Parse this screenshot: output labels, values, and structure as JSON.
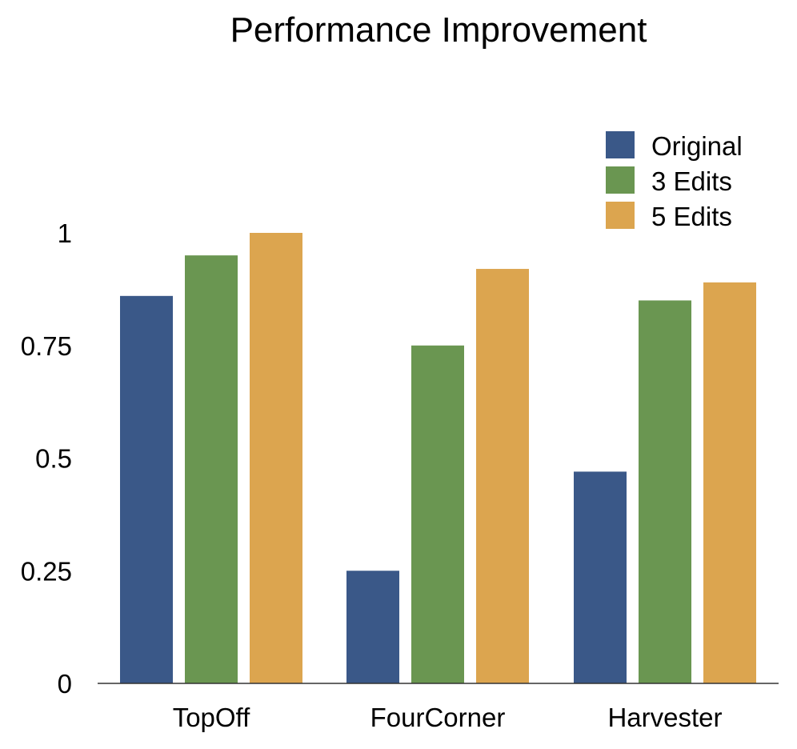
{
  "chart_data": {
    "type": "bar",
    "title": "Performance Improvement",
    "xlabel": "",
    "ylabel": "",
    "categories": [
      "TopOff",
      "FourCorner",
      "Harvester"
    ],
    "series": [
      {
        "name": "Original",
        "color": "#3a5888",
        "values": [
          0.86,
          0.25,
          0.47
        ]
      },
      {
        "name": "3 Edits",
        "color": "#6a9651",
        "values": [
          0.95,
          0.75,
          0.85
        ]
      },
      {
        "name": "5 Edits",
        "color": "#dca54f",
        "values": [
          1.0,
          0.92,
          0.89
        ]
      }
    ],
    "ylim": [
      0,
      1
    ],
    "yticks": [
      {
        "value": 0,
        "label": "0"
      },
      {
        "value": 0.25,
        "label": "0.25"
      },
      {
        "value": 0.5,
        "label": "0.5"
      },
      {
        "value": 0.75,
        "label": "0.75"
      },
      {
        "value": 1,
        "label": "1"
      }
    ],
    "grid": false,
    "legend_position": "top-right"
  }
}
